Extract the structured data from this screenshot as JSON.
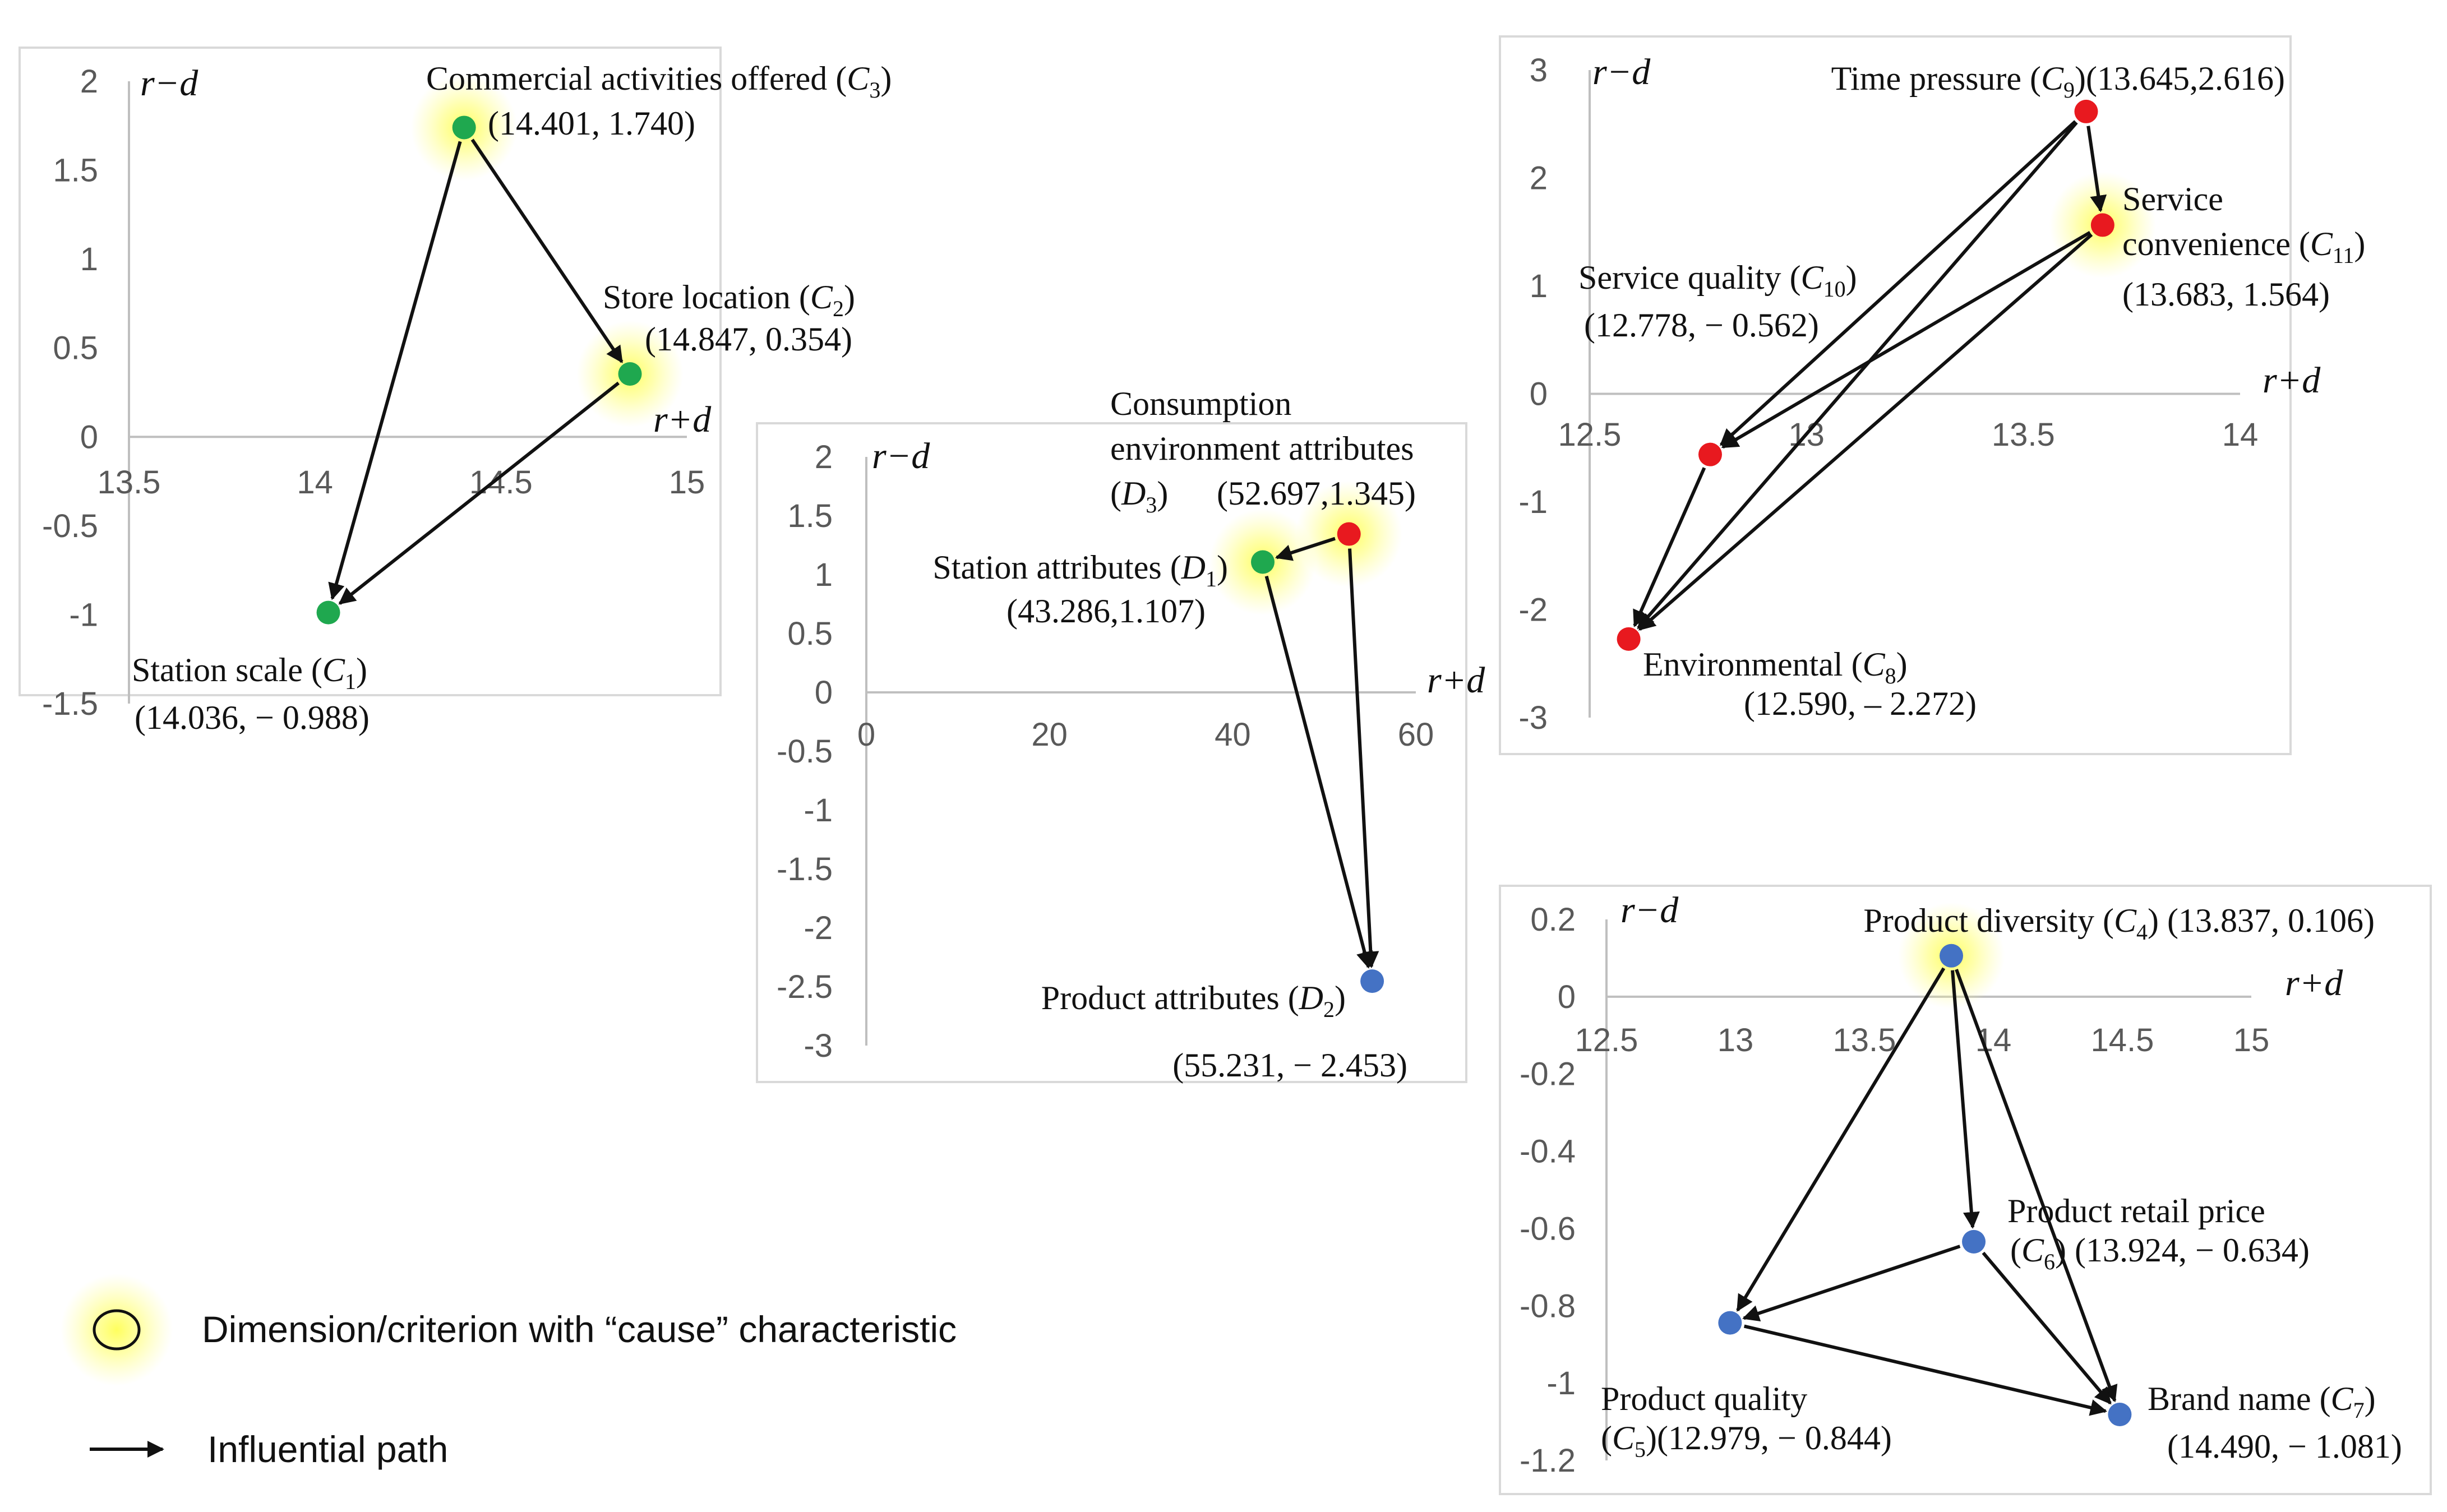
{
  "colors": {
    "cause_dim": "#1fa84f",
    "cause_crit": "#e8191f",
    "effect": "#4472c4",
    "glow": "#ffff66",
    "arrow": "#111111"
  },
  "chart_data": [
    {
      "id": "c1",
      "type": "scatter",
      "title": "",
      "xlabel": "r+d",
      "ylabel": "r−d",
      "xlim": [
        13.5,
        15
      ],
      "ylim": [
        -1.5,
        2
      ],
      "xticks": [
        "13.5",
        "14",
        "14.5",
        "15"
      ],
      "xtick_values": [
        13.5,
        14,
        14.5,
        15
      ],
      "yticks": [
        "2",
        "1.5",
        "1",
        "0.5",
        "0",
        "-0.5",
        "-1",
        "-1.5"
      ],
      "ytick_values": [
        2,
        1.5,
        1,
        0.5,
        0,
        -0.5,
        -1,
        -1.5
      ],
      "points": [
        {
          "id": "C3",
          "x": 14.401,
          "y": 1.74,
          "color": "cause_dim",
          "cause": true,
          "label": [
            "Commercial activities offered (C3)",
            "(14.401, 1.740)"
          ]
        },
        {
          "id": "C2",
          "x": 14.847,
          "y": 0.354,
          "color": "cause_dim",
          "cause": true,
          "label": [
            "Store location (C2)",
            "(14.847, 0.354)"
          ]
        },
        {
          "id": "C1",
          "x": 14.036,
          "y": -0.988,
          "color": "cause_dim",
          "cause": false,
          "label": [
            "Station scale (C1)",
            "(14.036, − 0.988)"
          ]
        }
      ],
      "arrows": [
        [
          "C3",
          "C2"
        ],
        [
          "C3",
          "C1"
        ],
        [
          "C2",
          "C1"
        ]
      ]
    },
    {
      "id": "d",
      "type": "scatter",
      "title": "",
      "xlabel": "r+d",
      "ylabel": "r−d",
      "xlim": [
        0,
        60
      ],
      "ylim": [
        -3,
        2
      ],
      "xticks": [
        "0",
        "20",
        "40",
        "60"
      ],
      "xtick_values": [
        0,
        20,
        40,
        60
      ],
      "yticks": [
        "2",
        "1.5",
        "1",
        "0.5",
        "0",
        "-0.5",
        "-1",
        "-1.5",
        "-2",
        "-2.5",
        "-3"
      ],
      "ytick_values": [
        2,
        1.5,
        1,
        0.5,
        0,
        -0.5,
        -1,
        -1.5,
        -2,
        -2.5,
        -3
      ],
      "points": [
        {
          "id": "D3",
          "x": 52.697,
          "y": 1.345,
          "color": "cause_crit",
          "cause": true,
          "label": [
            "Consumption",
            "environment attributes",
            "(D3)",
            "(52.697,1.345)"
          ]
        },
        {
          "id": "D1",
          "x": 43.286,
          "y": 1.107,
          "color": "cause_dim",
          "cause": true,
          "label": [
            "Station attributes (D1)",
            "(43.286,1.107)"
          ]
        },
        {
          "id": "D2",
          "x": 55.231,
          "y": -2.453,
          "color": "effect",
          "cause": false,
          "label": [
            "Product attributes (D2)",
            "(55.231, − 2.453)"
          ]
        }
      ],
      "arrows": [
        [
          "D3",
          "D1"
        ],
        [
          "D3",
          "D2"
        ],
        [
          "D1",
          "D2"
        ]
      ]
    },
    {
      "id": "c3",
      "type": "scatter",
      "title": "",
      "xlabel": "r+d",
      "ylabel": "r−d",
      "xlim": [
        12.5,
        14
      ],
      "ylim": [
        -3,
        3
      ],
      "xticks": [
        "12.5",
        "13",
        "13.5",
        "14"
      ],
      "xtick_values": [
        12.5,
        13,
        13.5,
        14
      ],
      "yticks": [
        "3",
        "2",
        "1",
        "0",
        "-1",
        "-2",
        "-3"
      ],
      "ytick_values": [
        3,
        2,
        1,
        0,
        -1,
        -2,
        -3
      ],
      "points": [
        {
          "id": "C9",
          "x": 13.645,
          "y": 2.616,
          "color": "cause_crit",
          "cause": false,
          "label": [
            "Time pressure (C9)(13.645,2.616)"
          ]
        },
        {
          "id": "C11",
          "x": 13.683,
          "y": 1.564,
          "color": "cause_crit",
          "cause": true,
          "label": [
            "Service",
            "convenience (C11)",
            "(13.683, 1.564)"
          ]
        },
        {
          "id": "C10",
          "x": 12.778,
          "y": -0.562,
          "color": "cause_crit",
          "cause": false,
          "label": [
            "Service quality (C10)",
            "(12.778, − 0.562)"
          ]
        },
        {
          "id": "C8",
          "x": 12.59,
          "y": -2.272,
          "color": "cause_crit",
          "cause": false,
          "label": [
            "Environmental (C8)",
            "(12.590, – 2.272)"
          ]
        }
      ],
      "arrows": [
        [
          "C9",
          "C11"
        ],
        [
          "C9",
          "C10"
        ],
        [
          "C9",
          "C8"
        ],
        [
          "C11",
          "C10"
        ],
        [
          "C11",
          "C8"
        ],
        [
          "C10",
          "C8"
        ]
      ]
    },
    {
      "id": "c4",
      "type": "scatter",
      "title": "",
      "xlabel": "r+d",
      "ylabel": "r−d",
      "xlim": [
        12.5,
        15
      ],
      "ylim": [
        -1.2,
        0.2
      ],
      "xticks": [
        "12.5",
        "13",
        "13.5",
        "14",
        "14.5",
        "15"
      ],
      "xtick_values": [
        12.5,
        13,
        13.5,
        14,
        14.5,
        15
      ],
      "yticks": [
        "0.2",
        "0",
        "-0.2",
        "-0.4",
        "-0.6",
        "-0.8",
        "-1",
        "-1.2"
      ],
      "ytick_values": [
        0.2,
        0,
        -0.2,
        -0.4,
        -0.6,
        -0.8,
        -1,
        -1.2
      ],
      "points": [
        {
          "id": "C4",
          "x": 13.837,
          "y": 0.106,
          "color": "effect",
          "cause": true,
          "label": [
            "Product diversity (C4) (13.837, 0.106)"
          ]
        },
        {
          "id": "C6",
          "x": 13.924,
          "y": -0.634,
          "color": "effect",
          "cause": false,
          "label": [
            "Product retail price",
            "(C6) (13.924,  − 0.634)"
          ]
        },
        {
          "id": "C5",
          "x": 12.979,
          "y": -0.844,
          "color": "effect",
          "cause": false,
          "label": [
            "Product quality",
            "(C5)(12.979, − 0.844)"
          ]
        },
        {
          "id": "C7",
          "x": 14.49,
          "y": -1.081,
          "color": "effect",
          "cause": false,
          "label": [
            "Brand name (C7)",
            "(14.490, − 1.081)"
          ]
        }
      ],
      "arrows": [
        [
          "C4",
          "C6"
        ],
        [
          "C4",
          "C5"
        ],
        [
          "C4",
          "C7"
        ],
        [
          "C6",
          "C5"
        ],
        [
          "C6",
          "C7"
        ],
        [
          "C5",
          "C7"
        ]
      ]
    }
  ],
  "legend": {
    "cause_label": "Dimension/criterion with “cause” characteristic",
    "path_label": "Influential path"
  }
}
